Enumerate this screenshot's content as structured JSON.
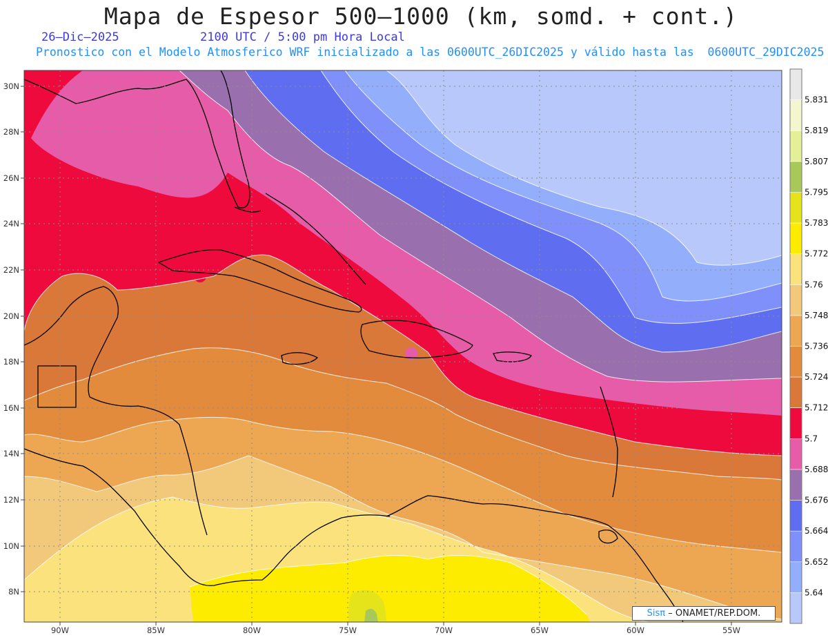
{
  "title": "Mapa de Espesor 500–1000 (km, somd. + cont.)",
  "date": "26–Dic–2025",
  "time": "2100 UTC / 5:00 pm Hora Local",
  "forecast_note": "Pronostico con el Modelo Atmosferico WRF inicializado a las 0600UTC_26DIC2025 y válido hasta las  0600UTC_29DIC2025",
  "credit": {
    "brand": "Sisπ",
    "text": "– ONAMET/REP.DOM."
  },
  "axes": {
    "lon_labels": [
      "90W",
      "85W",
      "80W",
      "75W",
      "70W",
      "65W",
      "60W",
      "55W"
    ],
    "lat_labels": [
      "30N",
      "28N",
      "26N",
      "24N",
      "22N",
      "20N",
      "18N",
      "16N",
      "14N",
      "12N",
      "10N",
      "8N"
    ]
  },
  "colorbar": {
    "levels": [
      "5.64",
      "5.652",
      "5.664",
      "5.676",
      "5.688",
      "5.7",
      "5.712",
      "5.724",
      "5.736",
      "5.748",
      "5.76",
      "5.772",
      "5.783",
      "5.795",
      "5.807",
      "5.819",
      "5.831"
    ],
    "colors": [
      "#b9c8fa",
      "#93aefa",
      "#7f90fa",
      "#5f6ef0",
      "#9a6fae",
      "#e65ca8",
      "#ee0a3c",
      "#d97838",
      "#e38b3c",
      "#eda652",
      "#f2c97a",
      "#fbe27c",
      "#fdeb00",
      "#e5e41a",
      "#a9c85a",
      "#e4f099",
      "#f3f6cf",
      "#e8e8e8"
    ]
  },
  "colors": {
    "coast": "#000000",
    "grid": "#8c8c8c",
    "contour": "#ffffff"
  }
}
